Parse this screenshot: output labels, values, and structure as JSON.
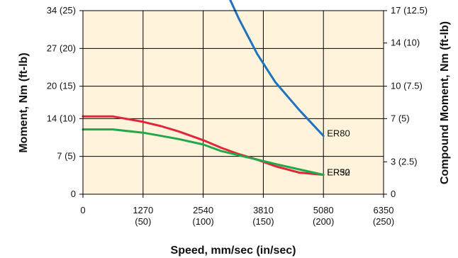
{
  "chart_data": {
    "type": "line",
    "title": "",
    "xlabel": "Speed, mm/sec (in/sec)",
    "ylabel": "Moment, Nm (ft-lb)",
    "y2label": "Compound Moment, Nm (ft-lb)",
    "xlim": [
      0,
      6350
    ],
    "ylim": [
      0,
      34
    ],
    "y2lim": [
      0,
      17
    ],
    "grid": true,
    "plot_background": "#FFF3DC",
    "x_ticks": [
      {
        "value": 0,
        "line1": "0",
        "line2": ""
      },
      {
        "value": 1270,
        "line1": "1270",
        "line2": "(50)"
      },
      {
        "value": 2540,
        "line1": "2540",
        "line2": "(100)"
      },
      {
        "value": 3810,
        "line1": "3810",
        "line2": "(150)"
      },
      {
        "value": 5080,
        "line1": "5080",
        "line2": "(200)"
      },
      {
        "value": 6350,
        "line1": "6350",
        "line2": "(250)"
      }
    ],
    "y_ticks": [
      {
        "value": 0,
        "label": "0"
      },
      {
        "value": 7,
        "label": "7 (5)"
      },
      {
        "value": 14,
        "label": "14 (10)"
      },
      {
        "value": 20,
        "label": "20 (15)"
      },
      {
        "value": 27,
        "label": "27 (20)"
      },
      {
        "value": 34,
        "label": "34 (25)"
      }
    ],
    "y2_ticks": [
      {
        "value": 0,
        "label": "0"
      },
      {
        "value": 3,
        "label": "3 (2.5)"
      },
      {
        "value": 7,
        "label": "7 (5)"
      },
      {
        "value": 10,
        "label": "10 (7.5)"
      },
      {
        "value": 14,
        "label": "14 (10)"
      },
      {
        "value": 17,
        "label": "17 (12.5)"
      }
    ],
    "series": [
      {
        "name": "ER80",
        "color": "#1E73BE",
        "x": [
          0,
          635,
          1270,
          1650,
          2030,
          2540,
          2920,
          3300,
          3680,
          4060,
          4570,
          5080
        ],
        "y": [
          33.8,
          33.8,
          32.0,
          30.2,
          27.6,
          23.2,
          19.8,
          16.2,
          13.0,
          10.4,
          7.8,
          5.4
        ]
      },
      {
        "name": "ER50",
        "color": "#E2263A",
        "x": [
          0,
          635,
          1270,
          1650,
          2030,
          2540,
          2920,
          3300,
          3680,
          4060,
          4570,
          5080
        ],
        "y": [
          7.2,
          7.2,
          6.7,
          6.3,
          5.8,
          5.0,
          4.3,
          3.7,
          3.2,
          2.6,
          2.0,
          1.8
        ]
      },
      {
        "name": "ER32",
        "color": "#20A84A",
        "x": [
          0,
          635,
          1270,
          1650,
          2030,
          2540,
          2920,
          3300,
          3680,
          4060,
          4570,
          5080
        ],
        "y": [
          6.0,
          6.0,
          5.7,
          5.4,
          5.1,
          4.6,
          4.0,
          3.6,
          3.2,
          2.8,
          2.3,
          1.8
        ]
      }
    ]
  }
}
